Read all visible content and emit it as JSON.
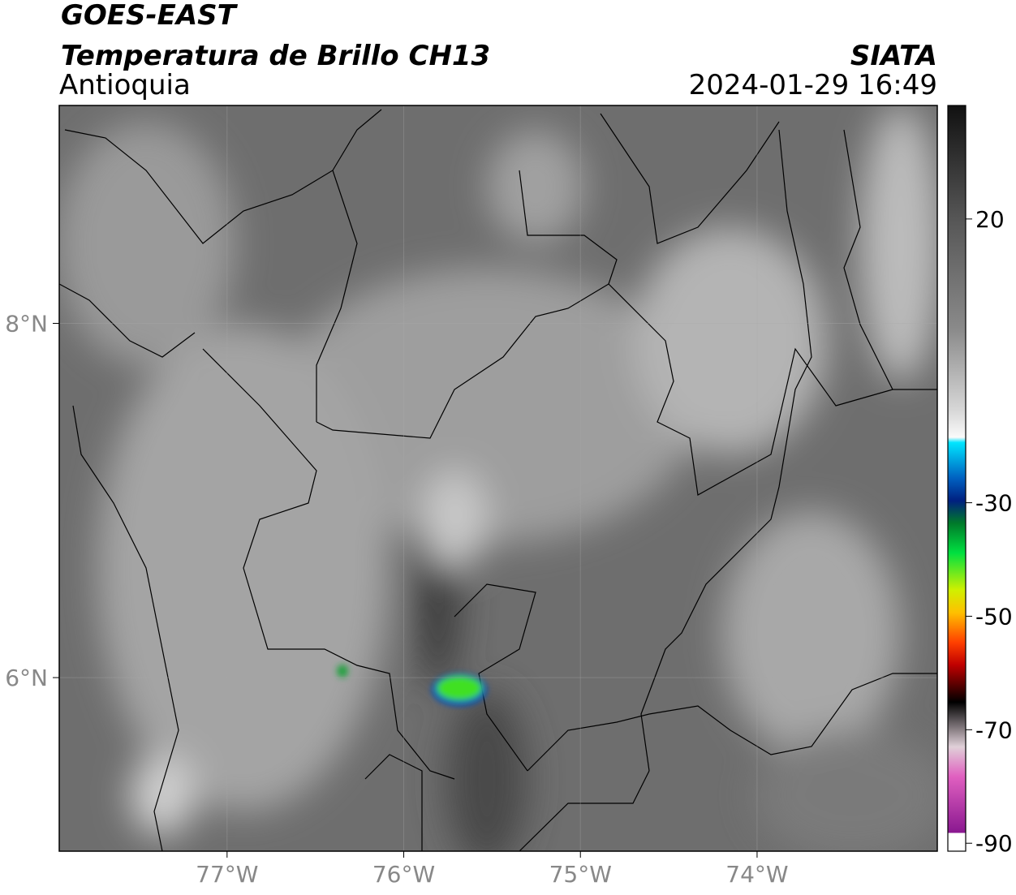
{
  "header": {
    "satellite": "GOES-EAST",
    "product": "Temperatura de Brillo CH13",
    "region": "Antioquia",
    "source": "SIATA",
    "timestamp": "2024-01-29 16:49"
  },
  "map": {
    "xlim": [
      -77.95,
      -72.98
    ],
    "ylim": [
      5.02,
      9.23
    ],
    "xticks": [
      {
        "value": -77,
        "label": "77°W"
      },
      {
        "value": -76,
        "label": "76°W"
      },
      {
        "value": -75,
        "label": "75°W"
      },
      {
        "value": -74,
        "label": "74°W"
      }
    ],
    "yticks": [
      {
        "value": 8,
        "label": "8°N"
      },
      {
        "value": 6,
        "label": "6°N"
      }
    ],
    "grid": true
  },
  "colorbar": {
    "ylim": [
      -91.4,
      40
    ],
    "yticks": [
      20,
      -30,
      -50,
      -70,
      -90
    ]
  }
}
